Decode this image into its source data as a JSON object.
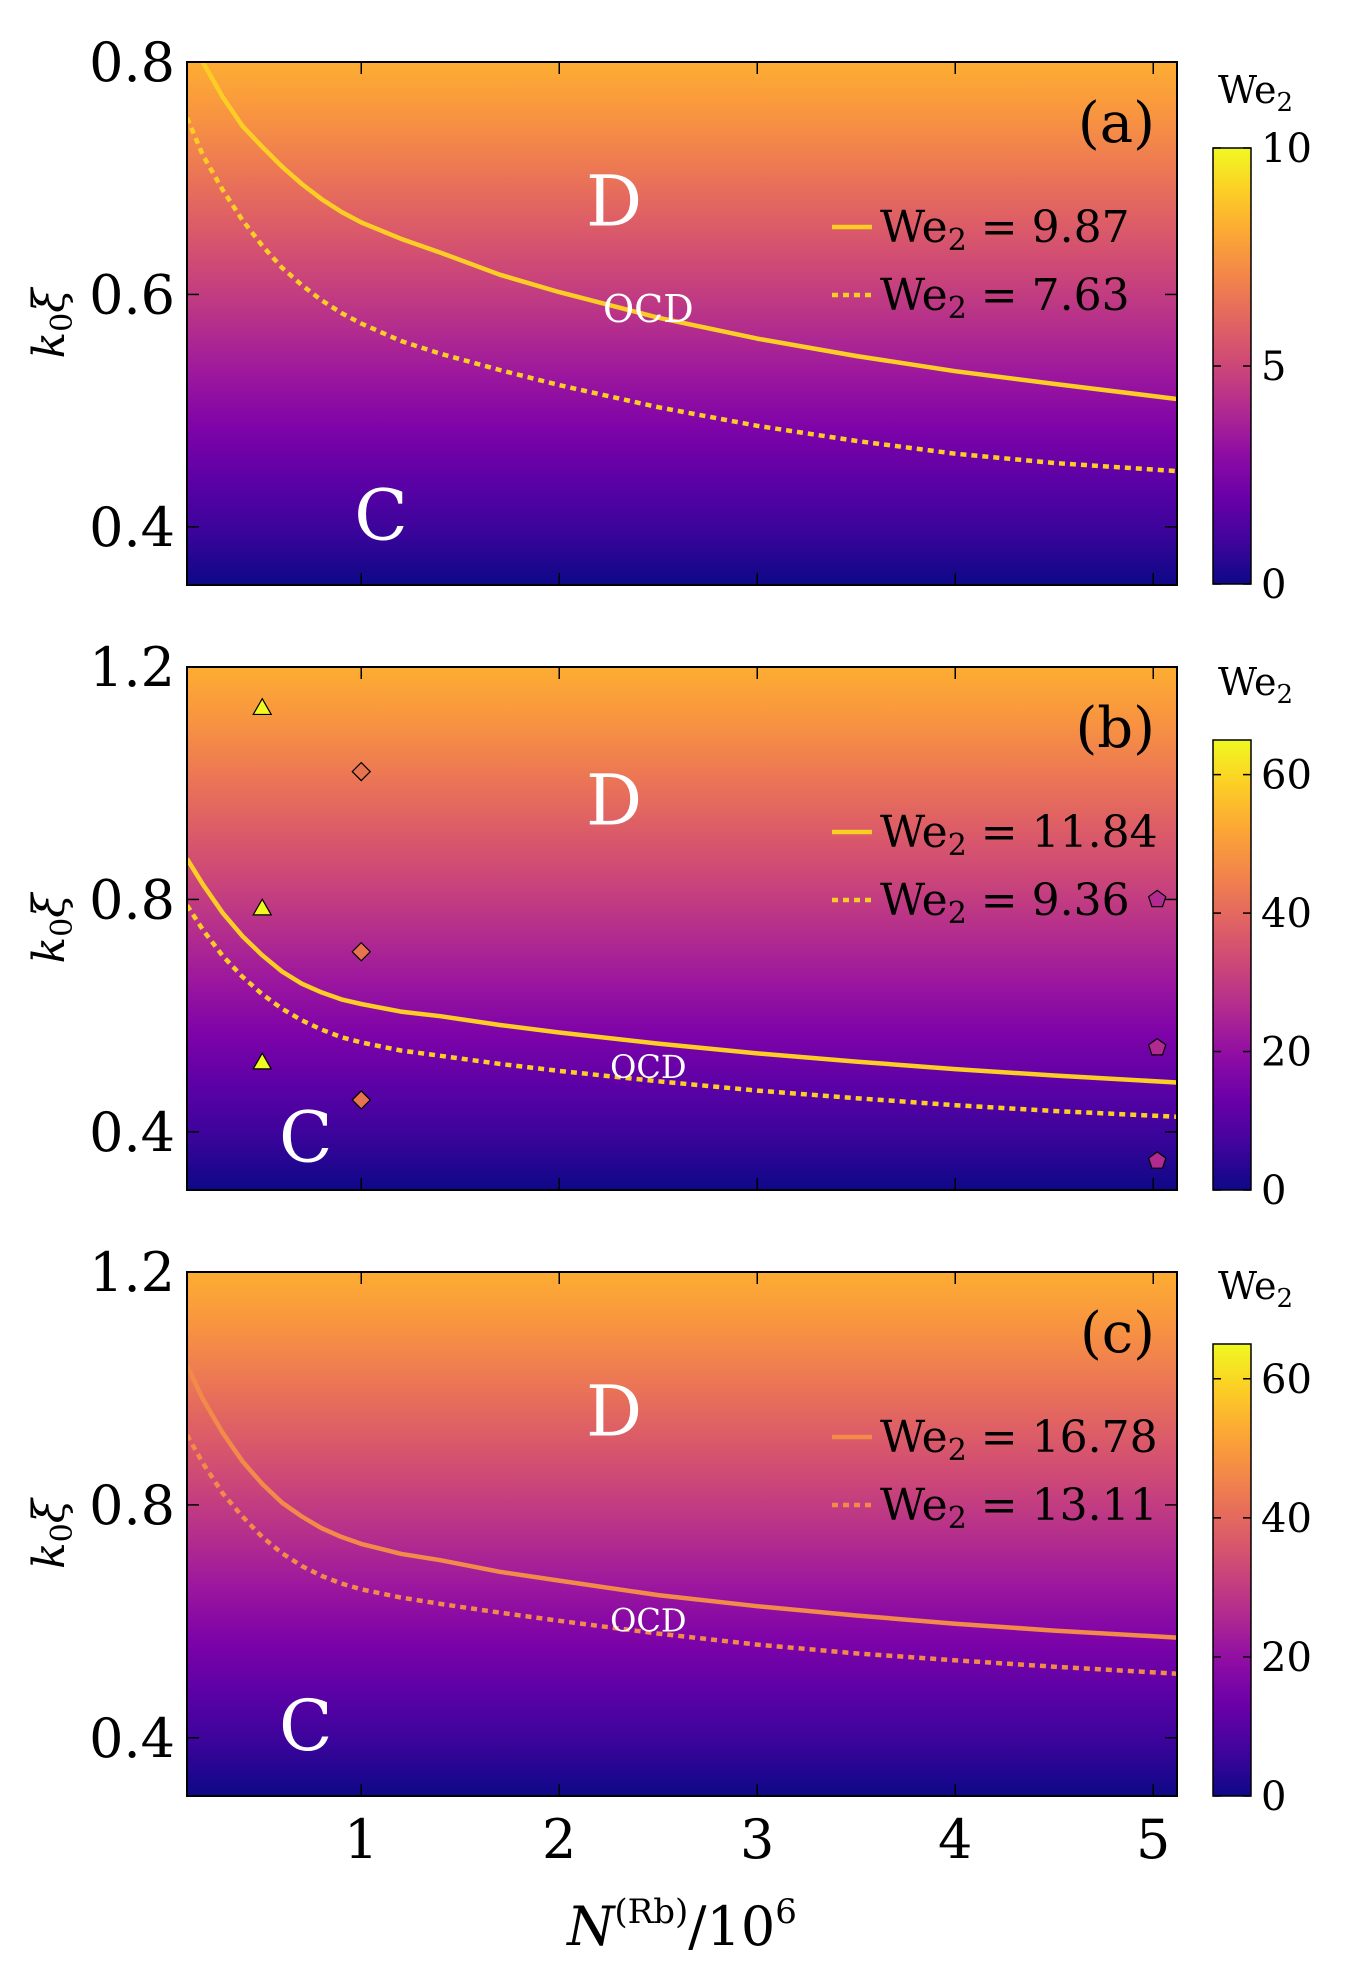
{
  "colormap": [
    "#0d0887",
    "#41049d",
    "#6a00a8",
    "#8f0da4",
    "#b12a90",
    "#cc4778",
    "#e16462",
    "#f2844b",
    "#fca636",
    "#fcce25",
    "#f0f921"
  ],
  "chart_data": [
    {
      "type": "heatmap",
      "panel": "(a)",
      "xlim": [
        0.12,
        5.12
      ],
      "ylim": [
        0.35,
        0.8
      ],
      "xticks": [
        1,
        2,
        3,
        4,
        5
      ],
      "xticklabels": [
        "1",
        "2",
        "3",
        "4",
        "5"
      ],
      "yticks": [
        0.4,
        0.6,
        0.8
      ],
      "yticklabels": [
        "0.4",
        "0.6",
        "0.8"
      ],
      "ylabel": "k₀ξ",
      "colorbar": {
        "title": "We₂",
        "range": [
          0,
          10
        ],
        "ticks": [
          0,
          5,
          10
        ],
        "ticklabels": [
          "0",
          "5",
          "10"
        ]
      },
      "regions": {
        "upper": "D",
        "lower": "C",
        "middle": "OCD"
      },
      "region_positions": {
        "D": [
          2.1,
          0.68
        ],
        "C": [
          1.1,
          0.41
        ],
        "OCD": [
          2.45,
          0.585
        ]
      },
      "series": [
        {
          "name": "We₂ = 9.87",
          "legend_value": "9.87",
          "style": "solid",
          "color": "#fcce25",
          "x": [
            0.12,
            0.2,
            0.3,
            0.4,
            0.5,
            0.6,
            0.7,
            0.8,
            0.9,
            1.0,
            1.2,
            1.4,
            1.7,
            2.0,
            2.5,
            3.0,
            3.5,
            4.0,
            4.5,
            5.12
          ],
          "y": [
            0.835,
            0.8,
            0.77,
            0.745,
            0.727,
            0.71,
            0.695,
            0.682,
            0.671,
            0.662,
            0.648,
            0.636,
            0.617,
            0.602,
            0.58,
            0.562,
            0.547,
            0.534,
            0.523,
            0.51
          ]
        },
        {
          "name": "We₂ = 7.63",
          "legend_value": "7.63",
          "style": "dashed",
          "color": "#fcce25",
          "x": [
            0.12,
            0.2,
            0.3,
            0.4,
            0.5,
            0.6,
            0.7,
            0.8,
            0.9,
            1.0,
            1.2,
            1.4,
            1.7,
            2.0,
            2.5,
            3.0,
            3.5,
            4.0,
            4.5,
            5.12
          ],
          "y": [
            0.752,
            0.72,
            0.69,
            0.664,
            0.642,
            0.623,
            0.608,
            0.595,
            0.584,
            0.575,
            0.56,
            0.549,
            0.535,
            0.522,
            0.503,
            0.487,
            0.474,
            0.463,
            0.455,
            0.448
          ]
        }
      ],
      "markers": []
    },
    {
      "type": "heatmap",
      "panel": "(b)",
      "xlim": [
        0.12,
        5.12
      ],
      "ylim": [
        0.3,
        1.2
      ],
      "xticks": [
        1,
        2,
        3,
        4,
        5
      ],
      "xticklabels": [
        "1",
        "2",
        "3",
        "4",
        "5"
      ],
      "yticks": [
        0.4,
        0.8,
        1.2
      ],
      "yticklabels": [
        "0.4",
        "0.8",
        "1.2"
      ],
      "ylabel": "k₀ξ",
      "colorbar": {
        "title": "We₂",
        "range": [
          0,
          65
        ],
        "ticks": [
          0,
          20,
          40,
          60
        ],
        "ticklabels": [
          "0",
          "20",
          "40",
          "60"
        ]
      },
      "regions": {
        "upper": "D",
        "lower": "C",
        "middle": "OCD"
      },
      "region_positions": {
        "D": [
          2.1,
          0.97
        ],
        "C": [
          0.72,
          0.39
        ],
        "OCD": [
          2.45,
          0.51
        ]
      },
      "series": [
        {
          "name": "We₂ = 11.84",
          "legend_value": "11.84",
          "style": "solid",
          "color": "#fcce25",
          "x": [
            0.12,
            0.2,
            0.3,
            0.4,
            0.5,
            0.6,
            0.7,
            0.8,
            0.9,
            1.0,
            1.2,
            1.4,
            1.7,
            2.0,
            2.5,
            3.0,
            3.5,
            4.0,
            4.5,
            5.12
          ],
          "y": [
            0.87,
            0.826,
            0.777,
            0.737,
            0.704,
            0.676,
            0.655,
            0.64,
            0.628,
            0.62,
            0.607,
            0.599,
            0.584,
            0.571,
            0.552,
            0.535,
            0.521,
            0.508,
            0.497,
            0.485
          ]
        },
        {
          "name": "We₂ = 9.36",
          "legend_value": "9.36",
          "style": "dashed",
          "color": "#fcce25",
          "x": [
            0.12,
            0.2,
            0.3,
            0.4,
            0.5,
            0.6,
            0.7,
            0.8,
            0.9,
            1.0,
            1.2,
            1.4,
            1.7,
            2.0,
            2.5,
            3.0,
            3.5,
            4.0,
            4.5,
            5.12
          ],
          "y": [
            0.79,
            0.748,
            0.703,
            0.667,
            0.637,
            0.612,
            0.592,
            0.576,
            0.563,
            0.554,
            0.54,
            0.531,
            0.517,
            0.505,
            0.487,
            0.471,
            0.458,
            0.446,
            0.436,
            0.426
          ]
        }
      ],
      "markers": [
        {
          "shape": "triangle",
          "x": 0.5,
          "y": 1.13,
          "color": "#f0f921"
        },
        {
          "shape": "triangle",
          "x": 0.5,
          "y": 0.785,
          "color": "#f0f921"
        },
        {
          "shape": "triangle",
          "x": 0.5,
          "y": 0.52,
          "color": "#f0f921"
        },
        {
          "shape": "diamond",
          "x": 1.0,
          "y": 1.02,
          "color": "#e8734f"
        },
        {
          "shape": "diamond",
          "x": 1.0,
          "y": 0.71,
          "color": "#e8734f"
        },
        {
          "shape": "diamond",
          "x": 1.0,
          "y": 0.455,
          "color": "#e8734f"
        },
        {
          "shape": "pentagon",
          "x": 5.02,
          "y": 0.8,
          "color": "#b12a90"
        },
        {
          "shape": "pentagon",
          "x": 5.02,
          "y": 0.545,
          "color": "#b12a90"
        },
        {
          "shape": "pentagon",
          "x": 5.02,
          "y": 0.35,
          "color": "#b12a90"
        }
      ]
    },
    {
      "type": "heatmap",
      "panel": "(c)",
      "xlim": [
        0.12,
        5.12
      ],
      "ylim": [
        0.3,
        1.2
      ],
      "xticks": [
        1,
        2,
        3,
        4,
        5
      ],
      "xticklabels": [
        "1",
        "2",
        "3",
        "4",
        "5"
      ],
      "yticks": [
        0.4,
        0.8,
        1.2
      ],
      "yticklabels": [
        "0.4",
        "0.8",
        "1.2"
      ],
      "xlabel": "N^(Rb)/10^6",
      "ylabel": "k₀ξ",
      "colorbar": {
        "title": "We₂",
        "range": [
          0,
          65
        ],
        "ticks": [
          0,
          20,
          40,
          60
        ],
        "ticklabels": [
          "0",
          "20",
          "40",
          "60"
        ]
      },
      "regions": {
        "upper": "D",
        "lower": "C",
        "middle": "OCD"
      },
      "region_positions": {
        "D": [
          2.1,
          0.96
        ],
        "C": [
          0.72,
          0.42
        ],
        "OCD": [
          2.45,
          0.6
        ]
      },
      "series": [
        {
          "name": "We₂ = 16.78",
          "legend_value": "16.78",
          "style": "solid",
          "color": "#f28a4a",
          "x": [
            0.12,
            0.2,
            0.3,
            0.4,
            0.5,
            0.6,
            0.7,
            0.8,
            0.9,
            1.0,
            1.2,
            1.4,
            1.7,
            2.0,
            2.5,
            3.0,
            3.5,
            4.0,
            4.5,
            5.12
          ],
          "y": [
            1.04,
            0.982,
            0.924,
            0.875,
            0.836,
            0.804,
            0.78,
            0.76,
            0.745,
            0.733,
            0.716,
            0.705,
            0.685,
            0.67,
            0.645,
            0.626,
            0.61,
            0.596,
            0.584,
            0.572
          ]
        },
        {
          "name": "We₂ = 13.11",
          "legend_value": "13.11",
          "style": "dashed",
          "color": "#f28a4a",
          "x": [
            0.12,
            0.2,
            0.3,
            0.4,
            0.5,
            0.6,
            0.7,
            0.8,
            0.9,
            1.0,
            1.2,
            1.4,
            1.7,
            2.0,
            2.5,
            3.0,
            3.5,
            4.0,
            4.5,
            5.12
          ],
          "y": [
            0.92,
            0.872,
            0.82,
            0.78,
            0.745,
            0.717,
            0.695,
            0.678,
            0.665,
            0.655,
            0.641,
            0.63,
            0.615,
            0.601,
            0.579,
            0.56,
            0.545,
            0.533,
            0.522,
            0.51
          ]
        }
      ],
      "markers": []
    }
  ]
}
